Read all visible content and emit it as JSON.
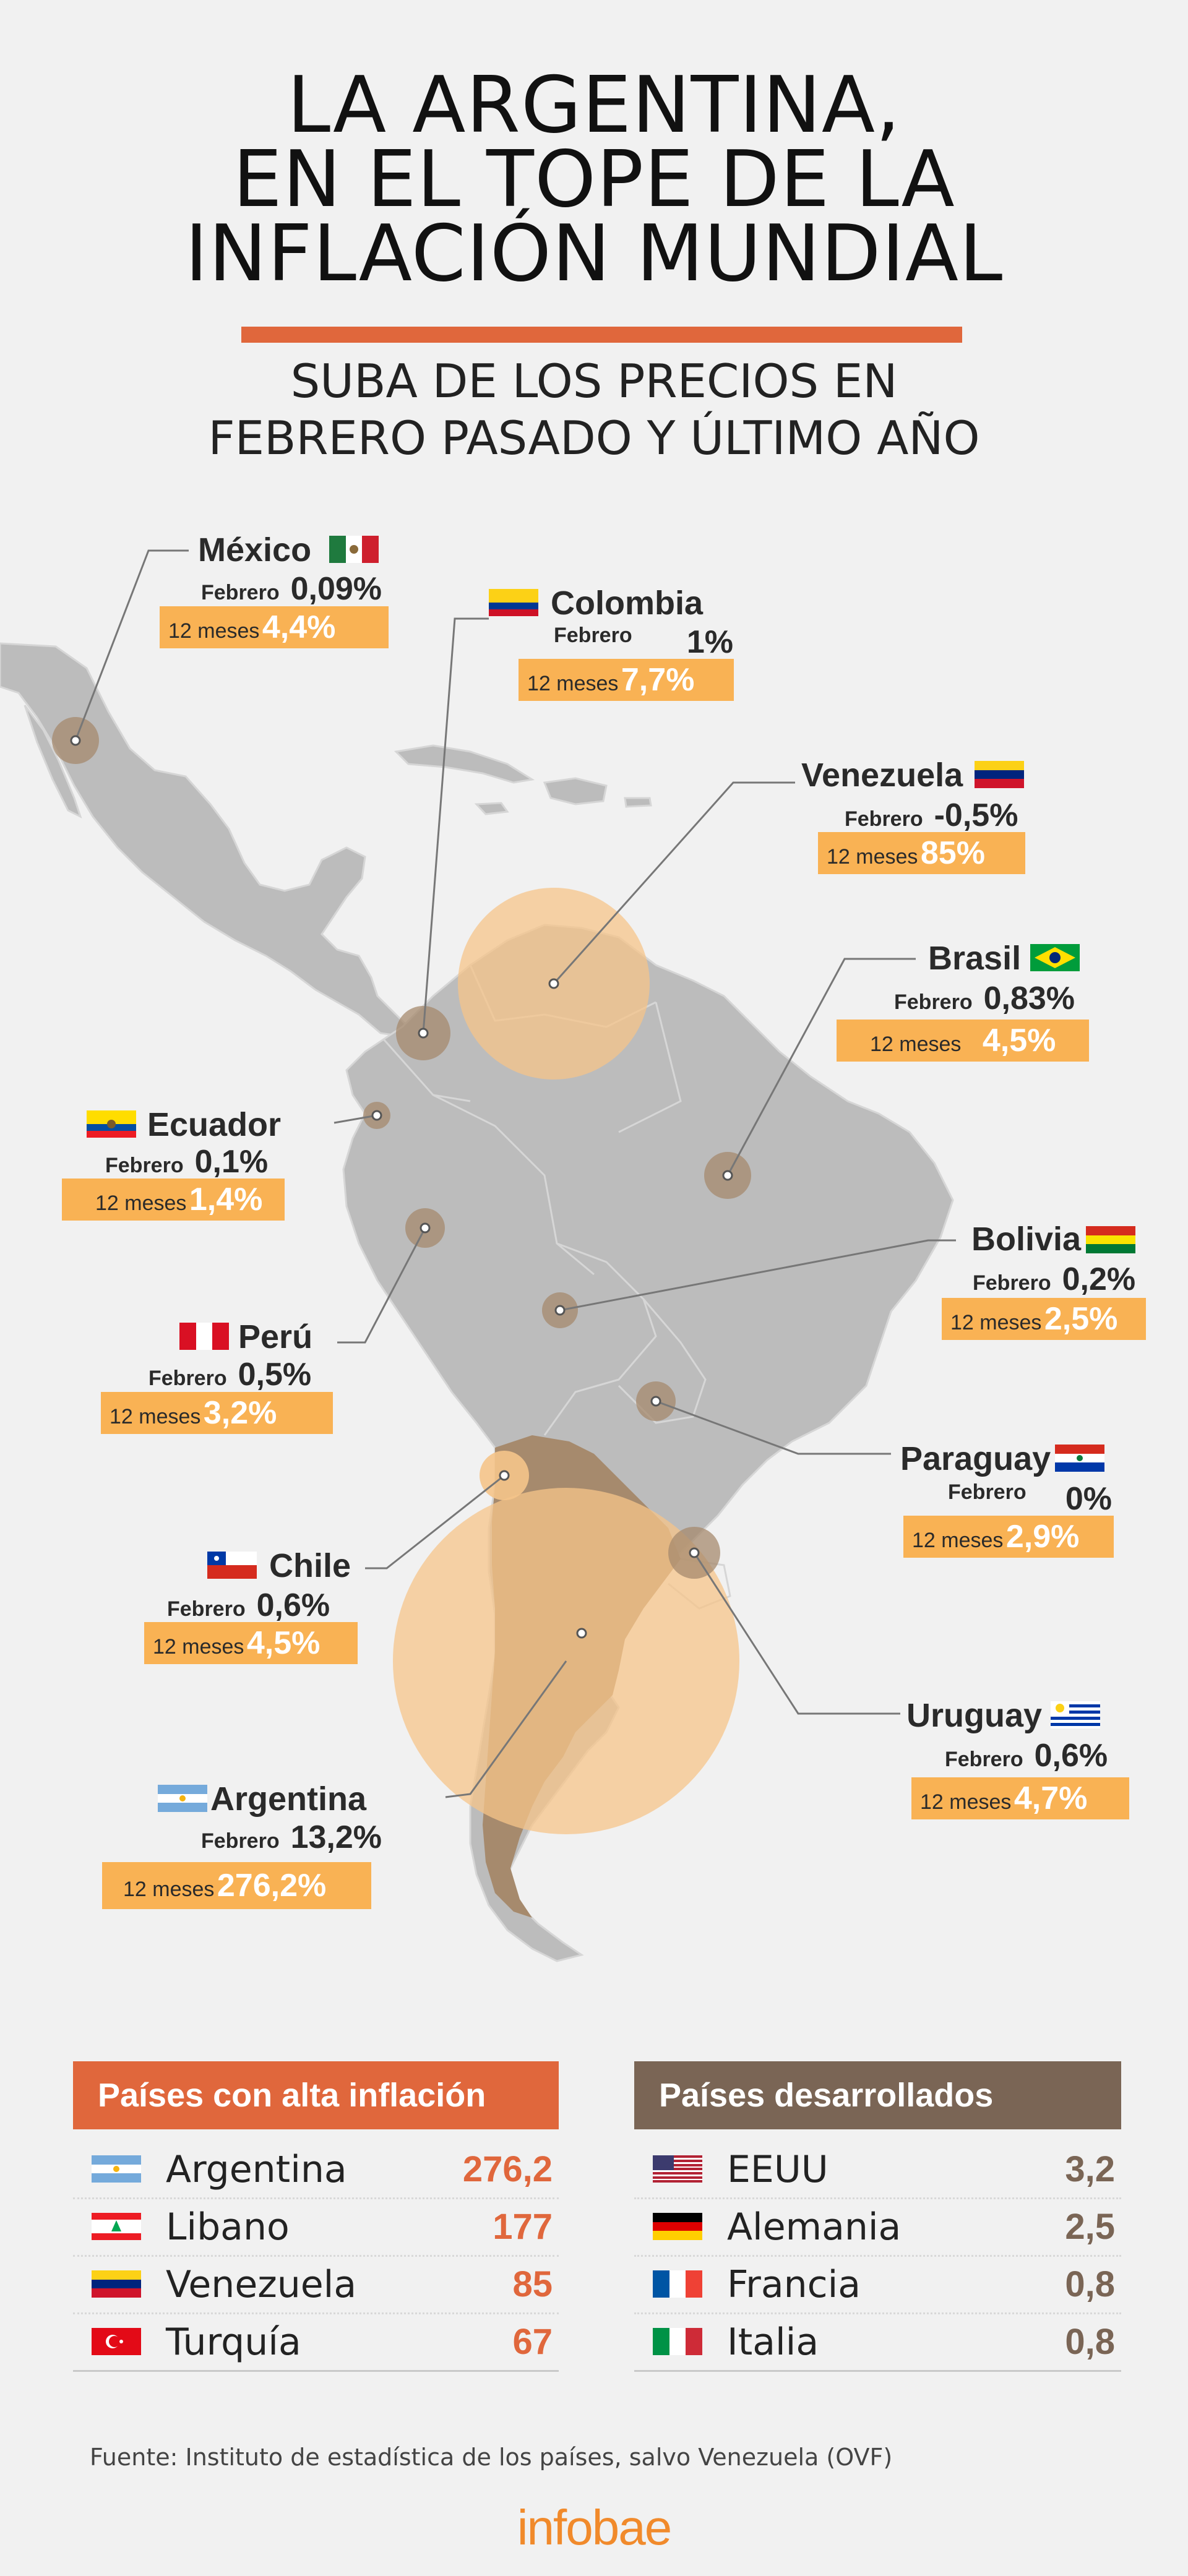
{
  "header": {
    "title_lines": [
      "LA ARGENTINA,",
      "EN EL TOPE DE LA",
      "INFLACIÓN MUNDIAL"
    ],
    "subtitle_lines": [
      "SUBA DE LOS PRECIOS EN",
      "FEBRERO PASADO Y ÚLTIMO AÑO"
    ]
  },
  "labels": {
    "febrero": "Febrero",
    "doce_meses": "12 meses"
  },
  "countries": {
    "mexico": {
      "name": "México",
      "feb": "0,09%",
      "year": "4,4%"
    },
    "colombia": {
      "name": "Colombia",
      "feb": "1%",
      "year": "7,7%"
    },
    "venezuela": {
      "name": "Venezuela",
      "feb": "-0,5%",
      "year": "85%"
    },
    "brasil": {
      "name": "Brasil",
      "feb": "0,83%",
      "year": "4,5%"
    },
    "ecuador": {
      "name": "Ecuador",
      "feb": "0,1%",
      "year": "1,4%"
    },
    "bolivia": {
      "name": "Bolivia",
      "feb": "0,2%",
      "year": "2,5%"
    },
    "peru": {
      "name": "Perú",
      "feb": "0,5%",
      "year": "3,2%"
    },
    "paraguay": {
      "name": "Paraguay",
      "feb": "0%",
      "year": "2,9%"
    },
    "chile": {
      "name": "Chile",
      "feb": "0,6%",
      "year": "4,5%"
    },
    "uruguay": {
      "name": "Uruguay",
      "feb": "0,6%",
      "year": "4,7%"
    },
    "argentina": {
      "name": "Argentina",
      "feb": "13,2%",
      "year": "276,2%"
    }
  },
  "tables": {
    "high": {
      "title": "Países con alta inflación",
      "color": "#e0673c",
      "rows": [
        {
          "country": "Argentina",
          "value": "276,2",
          "flag": "argentina-flag-icon"
        },
        {
          "country": "Libano",
          "value": "177",
          "flag": "lebanon-flag-icon"
        },
        {
          "country": "Venezuela",
          "value": "85",
          "flag": "venezuela-flag-icon"
        },
        {
          "country": "Turquía",
          "value": "67",
          "flag": "turkey-flag-icon"
        }
      ]
    },
    "developed": {
      "title": "Países desarrollados",
      "color": "#7a6555",
      "rows": [
        {
          "country": "EEUU",
          "value": "3,2",
          "flag": "usa-flag-icon"
        },
        {
          "country": "Alemania",
          "value": "2,5",
          "flag": "germany-flag-icon"
        },
        {
          "country": "Francia",
          "value": "0,8",
          "flag": "france-flag-icon"
        },
        {
          "country": "Italia",
          "value": "0,8",
          "flag": "italy-flag-icon"
        }
      ]
    }
  },
  "colors": {
    "accent": "#e0673c",
    "bubble": "#f5c48a",
    "label_bg": "#f9b254",
    "map": "#bcbcbc",
    "brown": "#7a6555"
  },
  "footer": {
    "source": "Fuente: Instituto de estadística de los países, salvo Venezuela (OVF)",
    "logo": "infobae"
  }
}
